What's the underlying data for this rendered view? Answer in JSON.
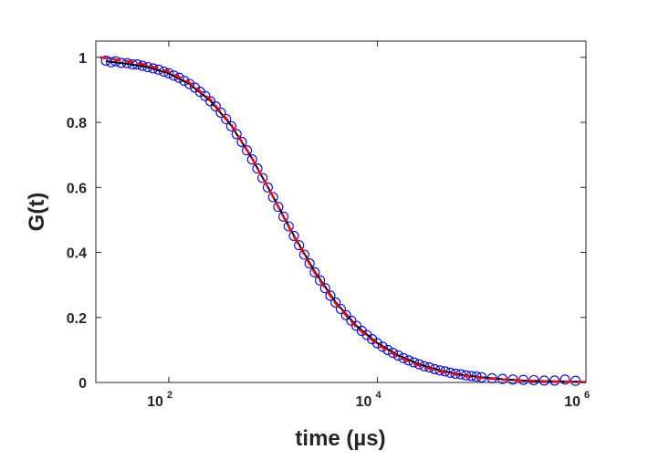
{
  "chart_data": {
    "type": "scatter",
    "title": "",
    "xlabel": "time (µs)",
    "ylabel": "G(t)",
    "xscale": "log",
    "xlim": [
      20,
      1000000
    ],
    "ylim": [
      0,
      1.05
    ],
    "grid": false,
    "legend": "none",
    "x_ticks": [
      {
        "value": 100,
        "base": "10",
        "exp": "2"
      },
      {
        "value": 10000,
        "base": "10",
        "exp": "4"
      },
      {
        "value": 1000000,
        "base": "10",
        "exp": "6"
      }
    ],
    "y_ticks": [
      {
        "value": 0,
        "label": "0"
      },
      {
        "value": 0.2,
        "label": "0.2"
      },
      {
        "value": 0.4,
        "label": "0.4"
      },
      {
        "value": 0.6,
        "label": "0.6"
      },
      {
        "value": 0.8,
        "label": "0.8"
      },
      {
        "value": 1,
        "label": "1"
      }
    ],
    "series": [
      {
        "kind": "markers",
        "marker": "open-circle",
        "color": "#0000ff",
        "points": [
          [
            25,
            0.99
          ],
          [
            28,
            0.985
          ],
          [
            31,
            0.988
          ],
          [
            35,
            0.983
          ],
          [
            40,
            0.982
          ],
          [
            45,
            0.978
          ],
          [
            50,
            0.978
          ],
          [
            56,
            0.974
          ],
          [
            63,
            0.97
          ],
          [
            71,
            0.966
          ],
          [
            80,
            0.962
          ],
          [
            90,
            0.956
          ],
          [
            100,
            0.951
          ],
          [
            112,
            0.944
          ],
          [
            126,
            0.937
          ],
          [
            141,
            0.928
          ],
          [
            158,
            0.918
          ],
          [
            178,
            0.907
          ],
          [
            200,
            0.894
          ],
          [
            224,
            0.881
          ],
          [
            251,
            0.865
          ],
          [
            282,
            0.849
          ],
          [
            316,
            0.83
          ],
          [
            355,
            0.81
          ],
          [
            398,
            0.788
          ],
          [
            447,
            0.764
          ],
          [
            501,
            0.74
          ],
          [
            562,
            0.714
          ],
          [
            631,
            0.686
          ],
          [
            708,
            0.658
          ],
          [
            794,
            0.629
          ],
          [
            891,
            0.6
          ],
          [
            1000,
            0.57
          ],
          [
            1122,
            0.54
          ],
          [
            1259,
            0.51
          ],
          [
            1413,
            0.48
          ],
          [
            1585,
            0.451
          ],
          [
            1778,
            0.422
          ],
          [
            1995,
            0.393
          ],
          [
            2239,
            0.366
          ],
          [
            2512,
            0.339
          ],
          [
            2818,
            0.314
          ],
          [
            3162,
            0.29
          ],
          [
            3548,
            0.267
          ],
          [
            3981,
            0.246
          ],
          [
            4467,
            0.226
          ],
          [
            5012,
            0.207
          ],
          [
            5623,
            0.19
          ],
          [
            6310,
            0.174
          ],
          [
            7079,
            0.159
          ],
          [
            7943,
            0.146
          ],
          [
            8913,
            0.133
          ],
          [
            10000,
            0.121
          ],
          [
            11220,
            0.11
          ],
          [
            12589,
            0.1
          ],
          [
            14125,
            0.091
          ],
          [
            15849,
            0.083
          ],
          [
            17783,
            0.075
          ],
          [
            19953,
            0.068
          ],
          [
            22387,
            0.062
          ],
          [
            25119,
            0.056
          ],
          [
            28184,
            0.05
          ],
          [
            31623,
            0.046
          ],
          [
            35481,
            0.041
          ],
          [
            39811,
            0.037
          ],
          [
            44668,
            0.034
          ],
          [
            50119,
            0.03
          ],
          [
            56234,
            0.027
          ],
          [
            63096,
            0.025
          ],
          [
            70795,
            0.022
          ],
          [
            79433,
            0.02
          ],
          [
            89125,
            0.018
          ],
          [
            100000,
            0.016
          ],
          [
            125893,
            0.013
          ],
          [
            158489,
            0.011
          ],
          [
            199526,
            0.009
          ],
          [
            251189,
            0.008
          ],
          [
            316228,
            0.007
          ],
          [
            398107,
            0.006
          ],
          [
            501187,
            0.006
          ],
          [
            630957,
            0.009
          ],
          [
            794328,
            0.005
          ]
        ]
      },
      {
        "kind": "line",
        "style": "solid",
        "color": "#000000",
        "points": [
          [
            25,
            0.988
          ],
          [
            40,
            0.98
          ],
          [
            63,
            0.97
          ],
          [
            100,
            0.951
          ],
          [
            158,
            0.918
          ],
          [
            251,
            0.866
          ],
          [
            398,
            0.79
          ],
          [
            631,
            0.688
          ],
          [
            1000,
            0.572
          ],
          [
            1585,
            0.452
          ],
          [
            2512,
            0.341
          ],
          [
            3981,
            0.247
          ],
          [
            6310,
            0.174
          ],
          [
            10000,
            0.121
          ],
          [
            15849,
            0.083
          ],
          [
            25119,
            0.056
          ],
          [
            39811,
            0.037
          ],
          [
            63096,
            0.024
          ],
          [
            100000,
            0.016
          ],
          [
            158489,
            0.01
          ],
          [
            251189,
            0.006
          ],
          [
            398107,
            0.004
          ],
          [
            630957,
            0.003
          ],
          [
            900000,
            0.002
          ]
        ]
      },
      {
        "kind": "line",
        "style": "dashed",
        "color": "#ff0000",
        "points": [
          [
            22,
            1.0
          ],
          [
            40,
            0.988
          ],
          [
            63,
            0.976
          ],
          [
            100,
            0.956
          ],
          [
            158,
            0.922
          ],
          [
            251,
            0.87
          ],
          [
            398,
            0.793
          ],
          [
            631,
            0.689
          ],
          [
            1000,
            0.571
          ],
          [
            1585,
            0.449
          ],
          [
            2512,
            0.337
          ],
          [
            3981,
            0.243
          ],
          [
            6310,
            0.17
          ],
          [
            10000,
            0.117
          ],
          [
            15849,
            0.079
          ],
          [
            25119,
            0.052
          ],
          [
            39811,
            0.034
          ],
          [
            63096,
            0.022
          ],
          [
            100000,
            0.014
          ],
          [
            158489,
            0.009
          ],
          [
            251189,
            0.006
          ],
          [
            398107,
            0.004
          ],
          [
            630957,
            0.002
          ],
          [
            1000000,
            0.001
          ]
        ]
      }
    ]
  }
}
